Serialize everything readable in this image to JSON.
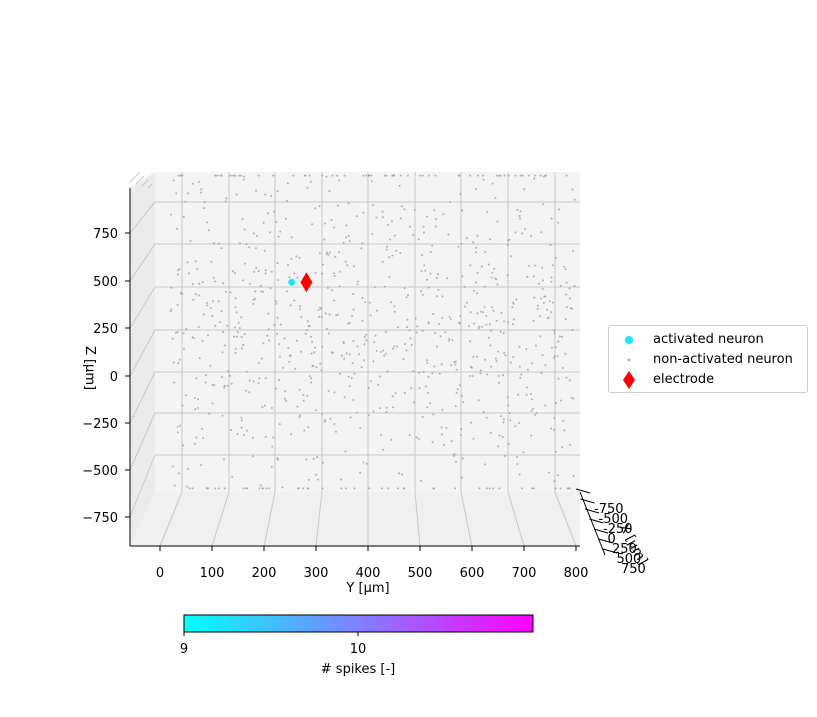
{
  "chart_data": {
    "type": "scatter",
    "projection": "3d",
    "xlabel": "X [μm]",
    "ylabel": "Y [μm]",
    "zlabel": "Z [μm]",
    "x_ticks": [
      "-750",
      "-500",
      "-250",
      "0",
      "250",
      "500",
      "750"
    ],
    "y_ticks": [
      "0",
      "100",
      "200",
      "300",
      "400",
      "500",
      "600",
      "700",
      "800"
    ],
    "z_ticks": [
      "750",
      "500",
      "250",
      "0",
      "−250",
      "−500",
      "−750"
    ],
    "ylim": [
      -50,
      820
    ],
    "zlim": [
      -900,
      900
    ],
    "grid": true,
    "legend_placement": "right",
    "series": [
      {
        "name": "activated neuron",
        "color": "#1ae6ff",
        "marker": "circle",
        "points": [
          {
            "y": 230,
            "z": 280,
            "spikes": 9
          }
        ]
      },
      {
        "name": "non-activated neuron",
        "color": "#9a9a9a",
        "marker": "dot",
        "note_count_approx": 900
      },
      {
        "name": "electrode",
        "color": "#ff0000",
        "marker": "diamond",
        "points": [
          {
            "y": 260,
            "z": 280
          }
        ]
      }
    ],
    "colorbar": {
      "label": "# spikes [-]",
      "ticks": [
        "9",
        "10"
      ],
      "range": [
        9,
        11
      ],
      "cmap_start": "#00ffff",
      "cmap_end": "#ff00ff"
    }
  },
  "legend": {
    "activated": "activated neuron",
    "nonactivated": "non-activated neuron",
    "electrode": "electrode"
  }
}
